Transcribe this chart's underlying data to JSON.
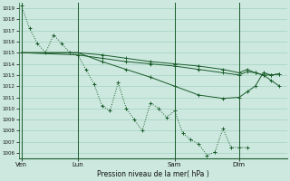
{
  "xlabel": "Pression niveau de la mer( hPa )",
  "ylim": [
    1005.5,
    1019.5
  ],
  "yticks": [
    1006,
    1007,
    1008,
    1009,
    1010,
    1011,
    1012,
    1013,
    1014,
    1015,
    1016,
    1017,
    1018,
    1019
  ],
  "xtick_labels": [
    "Ven",
    "Lun",
    "Sam",
    "Dim"
  ],
  "xtick_positions": [
    0,
    7,
    19,
    27
  ],
  "xlim": [
    -0.3,
    33
  ],
  "bg_color": "#cce8df",
  "line_color": "#1a5c2a",
  "grid_color": "#99ccbb",
  "series0_x": [
    0,
    1,
    2,
    3,
    4,
    5,
    6,
    7,
    8,
    9,
    10,
    11,
    12,
    13,
    14,
    15,
    16,
    17,
    18,
    19,
    20,
    21,
    22,
    23,
    24,
    25,
    26,
    27,
    28
  ],
  "series0_y": [
    1019.2,
    1017.2,
    1015.8,
    1015.0,
    1016.6,
    1015.8,
    1015.0,
    1014.8,
    1013.5,
    1012.2,
    1010.2,
    1009.8,
    1012.3,
    1010.0,
    1009.0,
    1008.0,
    1010.5,
    1010.0,
    1009.2,
    1009.8,
    1007.8,
    1007.2,
    1006.8,
    1005.8,
    1006.1,
    1008.2,
    1006.5,
    1006.5,
    1006.5
  ],
  "series1_x": [
    0,
    7,
    10,
    13,
    16,
    19,
    22,
    25,
    27,
    28,
    29,
    30,
    31,
    32
  ],
  "series1_y": [
    1015.0,
    1015.0,
    1014.2,
    1013.5,
    1012.8,
    1012.0,
    1011.2,
    1010.9,
    1011.0,
    1011.5,
    1012.0,
    1013.2,
    1013.0,
    1013.1
  ],
  "series2_x": [
    0,
    7,
    10,
    13,
    16,
    19,
    22,
    25,
    27,
    28,
    29,
    30,
    31,
    32
  ],
  "series2_y": [
    1015.0,
    1014.8,
    1014.5,
    1014.2,
    1014.0,
    1013.8,
    1013.5,
    1013.2,
    1013.0,
    1013.3,
    1013.2,
    1013.0,
    1012.5,
    1012.0
  ],
  "series3_x": [
    0,
    7,
    10,
    13,
    16,
    19,
    22,
    25,
    27,
    28,
    29,
    30,
    31,
    32
  ],
  "series3_y": [
    1015.0,
    1015.0,
    1014.8,
    1014.5,
    1014.2,
    1014.0,
    1013.8,
    1013.5,
    1013.2,
    1013.5,
    1013.2,
    1013.0,
    1013.0,
    1013.1
  ]
}
